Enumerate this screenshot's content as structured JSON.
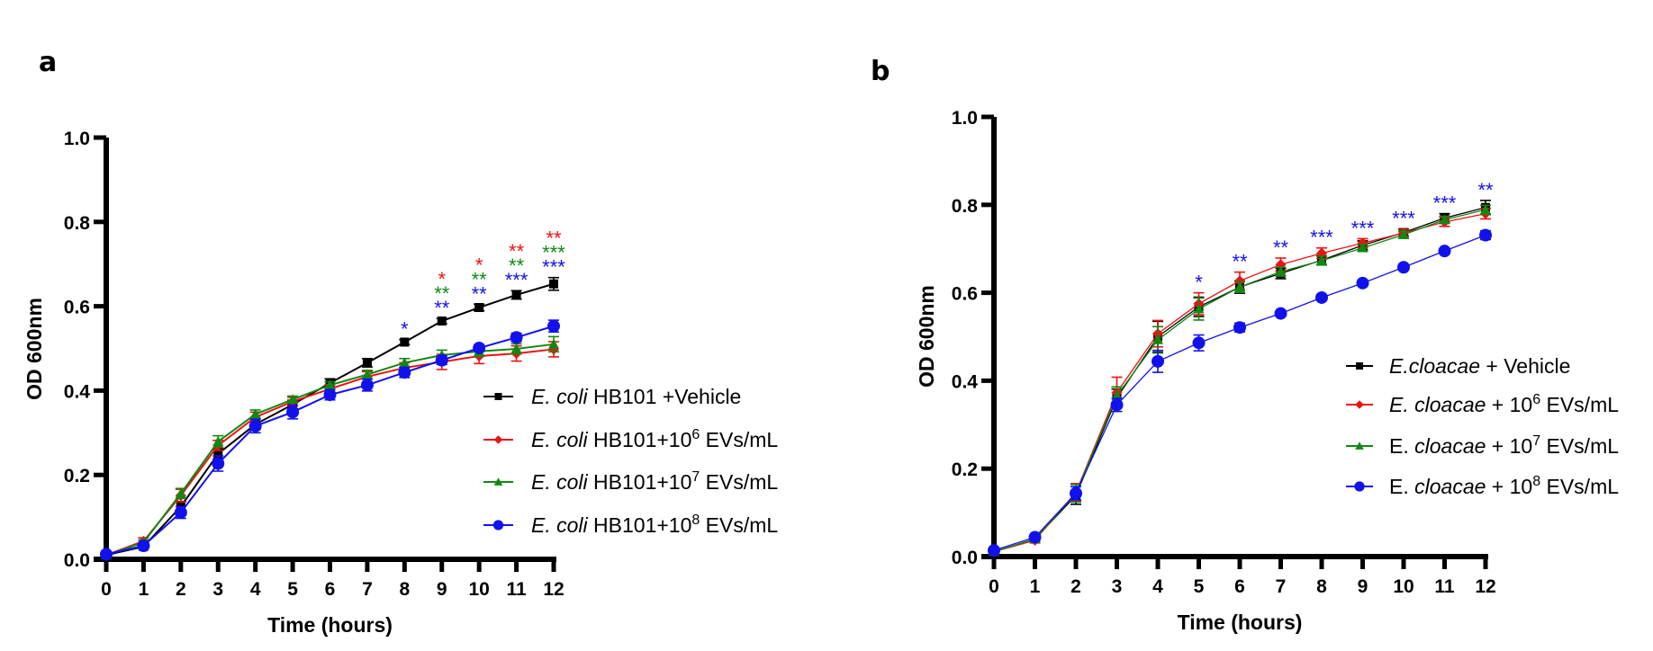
{
  "chart_data": [
    {
      "panel": "a",
      "type": "line",
      "title": "",
      "xlabel": "Time (hours)",
      "ylabel": "OD 600nm",
      "x": [
        0,
        1,
        2,
        3,
        4,
        5,
        6,
        7,
        8,
        9,
        10,
        11,
        12
      ],
      "xticks": [
        "0",
        "1",
        "2",
        "3",
        "4",
        "5",
        "6",
        "7",
        "8",
        "9",
        "10",
        "11",
        "12"
      ],
      "yticks": [
        "0.0",
        "0.2",
        "0.4",
        "0.6",
        "0.8",
        "1.0"
      ],
      "xlim": [
        0,
        12
      ],
      "ylim": [
        0,
        1.0
      ],
      "grid": false,
      "legend_position": "bottom-right",
      "series": [
        {
          "name": "E. coli HB101 +Vehicle",
          "legend": {
            "italic": "E. coli",
            "rest": " HB101 +Vehicle",
            "sup": "",
            "after": ""
          },
          "color": "#000000",
          "marker": "square",
          "values": [
            0.01,
            0.03,
            0.125,
            0.25,
            0.32,
            0.367,
            0.418,
            0.466,
            0.515,
            0.565,
            0.597,
            0.627,
            0.653
          ],
          "errors": [
            0.004,
            0.005,
            0.012,
            0.012,
            0.012,
            0.01,
            0.01,
            0.01,
            0.006,
            0.006,
            0.008,
            0.01,
            0.015
          ]
        },
        {
          "name": "E. coli HB101+10^6 EVs/mL",
          "legend": {
            "italic": "E. coli",
            "rest": " HB101+10",
            "sup": "6",
            "after": " EVs/mL"
          },
          "color": "#ee1111",
          "marker": "diamond",
          "values": [
            0.01,
            0.043,
            0.151,
            0.27,
            0.337,
            0.374,
            0.404,
            0.433,
            0.454,
            0.468,
            0.482,
            0.488,
            0.498
          ],
          "errors": [
            0.004,
            0.008,
            0.015,
            0.012,
            0.012,
            0.01,
            0.01,
            0.012,
            0.012,
            0.018,
            0.018,
            0.018,
            0.018
          ]
        },
        {
          "name": "E. coli HB101+10^7 EVs/mL",
          "legend": {
            "italic": "E. coli",
            "rest": " HB101+10",
            "sup": "7",
            "after": " EVs/mL"
          },
          "color": "#118811",
          "marker": "triangle",
          "values": [
            0.01,
            0.04,
            0.156,
            0.279,
            0.344,
            0.379,
            0.413,
            0.438,
            0.466,
            0.484,
            0.493,
            0.499,
            0.51
          ],
          "errors": [
            0.004,
            0.006,
            0.012,
            0.014,
            0.01,
            0.008,
            0.008,
            0.01,
            0.01,
            0.012,
            0.012,
            0.012,
            0.018
          ]
        },
        {
          "name": "E. coli HB101+10^8 EVs/mL",
          "legend": {
            "italic": "E. coli",
            "rest": " HB101+10",
            "sup": "8",
            "after": " EVs/mL"
          },
          "color": "#1111ee",
          "marker": "circle",
          "values": [
            0.012,
            0.032,
            0.111,
            0.227,
            0.316,
            0.349,
            0.39,
            0.413,
            0.443,
            0.472,
            0.501,
            0.526,
            0.553
          ],
          "errors": [
            0.004,
            0.005,
            0.014,
            0.018,
            0.016,
            0.016,
            0.012,
            0.014,
            0.012,
            0.01,
            0.008,
            0.01,
            0.014
          ]
        }
      ],
      "annotations": [
        {
          "x": 8,
          "rows": [
            {
              "text": "*",
              "color": "#1111ee"
            }
          ]
        },
        {
          "x": 9,
          "rows": [
            {
              "text": "*",
              "color": "#ee1111"
            },
            {
              "text": "**",
              "color": "#118811"
            },
            {
              "text": "**",
              "color": "#1111ee"
            }
          ]
        },
        {
          "x": 10,
          "rows": [
            {
              "text": "*",
              "color": "#ee1111"
            },
            {
              "text": "**",
              "color": "#118811"
            },
            {
              "text": "**",
              "color": "#1111ee"
            }
          ]
        },
        {
          "x": 11,
          "rows": [
            {
              "text": "**",
              "color": "#ee1111"
            },
            {
              "text": "**",
              "color": "#118811"
            },
            {
              "text": "***",
              "color": "#1111ee"
            }
          ]
        },
        {
          "x": 12,
          "rows": [
            {
              "text": "**",
              "color": "#ee1111"
            },
            {
              "text": "***",
              "color": "#118811"
            },
            {
              "text": "***",
              "color": "#1111ee"
            }
          ]
        }
      ]
    },
    {
      "panel": "b",
      "type": "line",
      "title": "",
      "xlabel": "Time (hours)",
      "ylabel": "OD 600nm",
      "x": [
        0,
        1,
        2,
        3,
        4,
        5,
        6,
        7,
        8,
        9,
        10,
        11,
        12
      ],
      "xticks": [
        "0",
        "1",
        "2",
        "3",
        "4",
        "5",
        "6",
        "7",
        "8",
        "9",
        "10",
        "11",
        "12"
      ],
      "yticks": [
        "0.0",
        "0.2",
        "0.4",
        "0.6",
        "0.8",
        "1.0"
      ],
      "xlim": [
        0,
        12
      ],
      "ylim": [
        0,
        1.0
      ],
      "grid": false,
      "legend_position": "right",
      "series": [
        {
          "name": "E.cloacae + Vehicle",
          "legend": {
            "plain_prefix": "",
            "italic": "E.cloacae",
            "rest": " + Vehicle",
            "sup": "",
            "after": ""
          },
          "color": "#000000",
          "marker": "square",
          "values": [
            0.011,
            0.04,
            0.139,
            0.361,
            0.5,
            0.568,
            0.613,
            0.644,
            0.674,
            0.708,
            0.737,
            0.77,
            0.794
          ],
          "errors": [
            0.004,
            0.006,
            0.02,
            0.02,
            0.035,
            0.022,
            0.014,
            0.012,
            0.01,
            0.01,
            0.008,
            0.01,
            0.016
          ]
        },
        {
          "name": "E. cloacae + 10^6 EVs/mL",
          "legend": {
            "plain_prefix": "",
            "italic": "E. cloacae",
            "rest": " + 10",
            "sup": "6",
            "after": " EVs/mL"
          },
          "color": "#ee1111",
          "marker": "diamond",
          "values": [
            0.011,
            0.037,
            0.146,
            0.373,
            0.507,
            0.575,
            0.627,
            0.664,
            0.69,
            0.713,
            0.736,
            0.761,
            0.78
          ],
          "errors": [
            0.004,
            0.006,
            0.02,
            0.035,
            0.03,
            0.025,
            0.02,
            0.015,
            0.012,
            0.01,
            0.008,
            0.01,
            0.012
          ]
        },
        {
          "name": "E. cloacae + 10^7 EVs/mL",
          "legend": {
            "plain_prefix": "E. ",
            "italic": "cloacae",
            "rest": " + 10",
            "sup": "7",
            "after": " EVs/mL"
          },
          "color": "#118811",
          "marker": "triangle",
          "values": [
            0.011,
            0.04,
            0.144,
            0.366,
            0.493,
            0.563,
            0.613,
            0.648,
            0.673,
            0.702,
            0.732,
            0.766,
            0.789
          ],
          "errors": [
            0.004,
            0.006,
            0.02,
            0.02,
            0.03,
            0.025,
            0.012,
            0.01,
            0.01,
            0.008,
            0.008,
            0.008,
            0.01
          ]
        },
        {
          "name": "E. cloacae + 10^8 EVs/mL",
          "legend": {
            "plain_prefix": "E. ",
            "italic": "cloacae",
            "rest": " + 10",
            "sup": "8",
            "after": " EVs/mL"
          },
          "color": "#1111ee",
          "marker": "circle",
          "values": [
            0.014,
            0.044,
            0.144,
            0.345,
            0.444,
            0.486,
            0.521,
            0.553,
            0.589,
            0.622,
            0.658,
            0.695,
            0.731
          ],
          "errors": [
            0.004,
            0.006,
            0.015,
            0.015,
            0.025,
            0.018,
            0.01,
            0.006,
            0.006,
            0.006,
            0.006,
            0.006,
            0.01
          ]
        }
      ],
      "annotations": [
        {
          "x": 5,
          "rows": [
            {
              "text": "*",
              "color": "#1111ee"
            }
          ]
        },
        {
          "x": 6,
          "rows": [
            {
              "text": "**",
              "color": "#1111ee"
            }
          ]
        },
        {
          "x": 7,
          "rows": [
            {
              "text": "**",
              "color": "#1111ee"
            }
          ]
        },
        {
          "x": 8,
          "rows": [
            {
              "text": "***",
              "color": "#1111ee"
            }
          ]
        },
        {
          "x": 9,
          "rows": [
            {
              "text": "***",
              "color": "#1111ee"
            }
          ]
        },
        {
          "x": 10,
          "rows": [
            {
              "text": "***",
              "color": "#1111ee"
            }
          ]
        },
        {
          "x": 11,
          "rows": [
            {
              "text": "***",
              "color": "#1111ee"
            }
          ]
        },
        {
          "x": 12,
          "rows": [
            {
              "text": "**",
              "color": "#1111ee"
            }
          ]
        }
      ]
    }
  ],
  "panels": {
    "a_label": "a",
    "b_label": "b"
  }
}
